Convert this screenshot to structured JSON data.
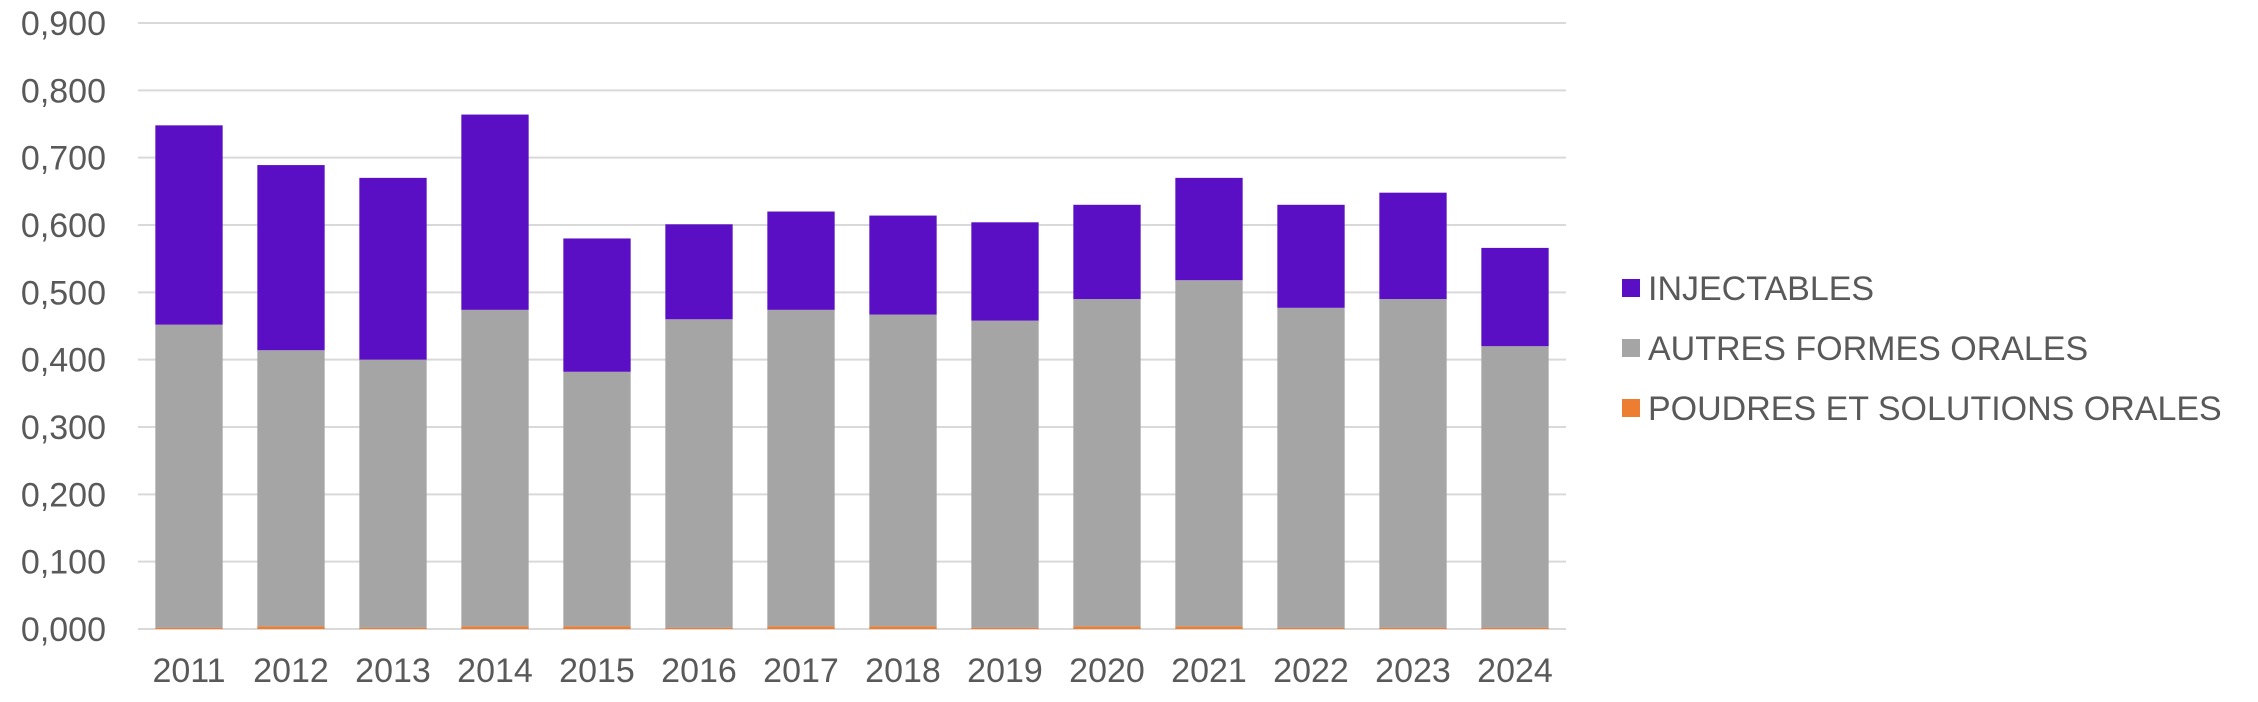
{
  "chart_data": {
    "type": "bar",
    "stacked": true,
    "categories": [
      "2011",
      "2012",
      "2013",
      "2014",
      "2015",
      "2016",
      "2017",
      "2018",
      "2019",
      "2020",
      "2021",
      "2022",
      "2023",
      "2024"
    ],
    "series": [
      {
        "name": "POUDRES ET SOLUTIONS ORALES",
        "color": "#ED7D31",
        "values": [
          0.002,
          0.004,
          0.002,
          0.004,
          0.004,
          0.002,
          0.004,
          0.004,
          0.002,
          0.004,
          0.004,
          0.002,
          0.002,
          0.002
        ]
      },
      {
        "name": "AUTRES FORMES ORALES",
        "color": "#A5A5A5",
        "values": [
          0.45,
          0.41,
          0.398,
          0.47,
          0.378,
          0.458,
          0.47,
          0.463,
          0.456,
          0.486,
          0.514,
          0.475,
          0.488,
          0.418
        ]
      },
      {
        "name": "INJECTABLES",
        "color": "#5B0FC4",
        "values": [
          0.296,
          0.275,
          0.27,
          0.29,
          0.198,
          0.141,
          0.146,
          0.147,
          0.146,
          0.14,
          0.152,
          0.153,
          0.158,
          0.146
        ]
      }
    ],
    "title": "",
    "xlabel": "",
    "ylabel": "",
    "ylim": [
      0,
      0.9
    ],
    "yticks": [
      "0,000",
      "0,100",
      "0,200",
      "0,300",
      "0,400",
      "0,500",
      "0,600",
      "0,700",
      "0,800",
      "0,900"
    ],
    "grid": true,
    "legend_position": "right",
    "legend_order": [
      "INJECTABLES",
      "AUTRES FORMES ORALES",
      "POUDRES ET SOLUTIONS ORALES"
    ]
  }
}
